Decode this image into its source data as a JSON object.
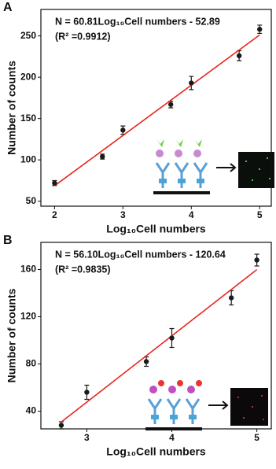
{
  "chart_data": [
    {
      "type": "scatter",
      "panel_label": "A",
      "annotations": [
        "N = 60.81Log₁₀Cell numbers - 52.89",
        "(R² =0.9912)"
      ],
      "x_label": "Log₁₀Cell numbers",
      "y_label": "Number of counts",
      "x": [
        2,
        2.7,
        3,
        3.7,
        4,
        4.7,
        5
      ],
      "values": [
        72,
        104,
        136,
        167,
        193,
        226,
        258
      ],
      "errors": [
        3,
        3,
        5,
        4,
        8,
        6,
        5
      ],
      "color": "#1a1a1a",
      "fit_line": {
        "x": [
          2,
          5
        ],
        "values": [
          68.7,
          251.2
        ],
        "color": "#e8251c"
      },
      "xlim": [
        1.8,
        5.17
      ],
      "ylim": [
        44,
        282
      ],
      "xticks": [
        2,
        3,
        4,
        5
      ],
      "yticks": [
        50,
        100,
        150,
        200,
        250
      ]
    },
    {
      "type": "scatter",
      "panel_label": "B",
      "annotations": [
        "N = 56.10Log₁₀Cell numbers - 120.64",
        "(R² =0.9835)"
      ],
      "x_label": "Log₁₀Cell numbers",
      "y_label": "Number of counts",
      "x": [
        2.7,
        3,
        3.7,
        4,
        4.7,
        5
      ],
      "values": [
        28,
        56,
        82,
        102,
        136,
        168
      ],
      "errors": [
        3,
        6,
        4,
        8,
        6,
        5
      ],
      "color": "#1a1a1a",
      "fit_line": {
        "x": [
          2.7,
          5
        ],
        "values": [
          30.8,
          159.9
        ],
        "color": "#e8251c"
      },
      "xlim": [
        2.46,
        5.17
      ],
      "ylim": [
        25,
        183
      ],
      "xticks": [
        3,
        4,
        5
      ],
      "yticks": [
        40,
        80,
        120,
        160
      ]
    }
  ]
}
